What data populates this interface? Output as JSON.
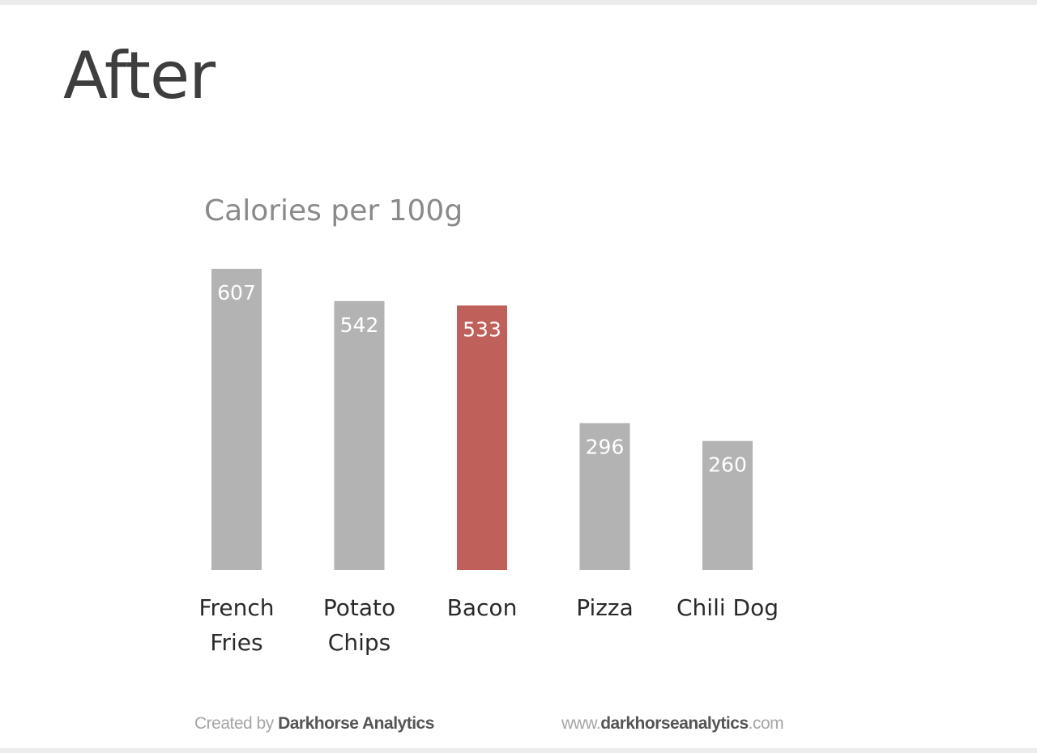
{
  "slide": {
    "heading": "After"
  },
  "chart_data": {
    "type": "bar",
    "title": "Calories per 100g",
    "categories": [
      [
        "French",
        "Fries"
      ],
      [
        "Potato",
        "Chips"
      ],
      [
        "Bacon"
      ],
      [
        "Pizza"
      ],
      [
        "Chili Dog"
      ]
    ],
    "values": [
      607,
      542,
      533,
      296,
      260
    ],
    "highlight_index": 2,
    "colors": {
      "bar": "#b3b3b3",
      "highlight": "#c0605b",
      "value_label": "#ffffff"
    },
    "xlabel": "",
    "ylabel": "",
    "ylim": [
      0,
      607
    ],
    "grid": false,
    "legend": "none"
  },
  "footer": {
    "created_prefix": "Created by",
    "created_brand": "Darkhorse Analytics",
    "url_prefix": "www.",
    "url_brand": "darkhorseanalytics",
    "url_suffix": ".com"
  }
}
